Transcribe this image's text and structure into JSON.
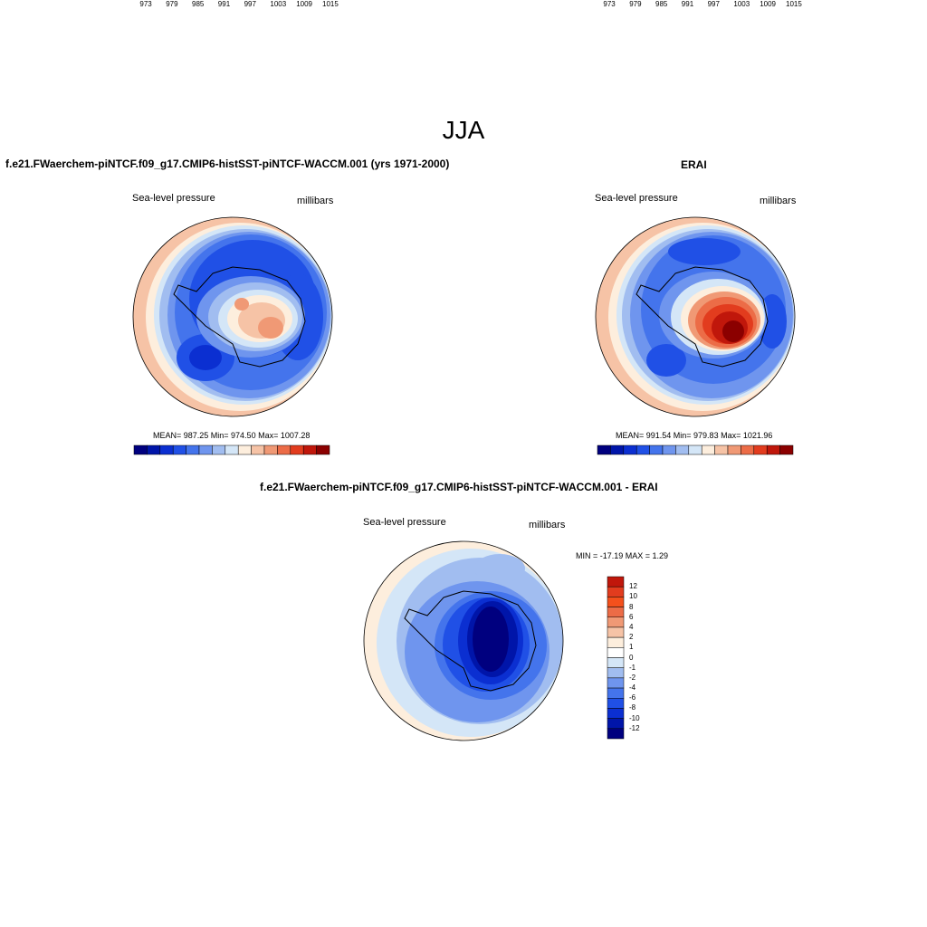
{
  "title": "JJA",
  "panels": [
    {
      "title": "f.e21.FWaerchem-piNTCF.f09_g17.CMIP6-histSST-piNTCF-WACCM.001 (yrs 1971-2000)",
      "variable": "Sea-level pressure",
      "units": "millibars",
      "stats": "MEAN= 987.25  Min= 974.50  Max= 1007.28",
      "colorbar_ticks": [
        "973",
        "979",
        "985",
        "991",
        "997",
        "1003",
        "1009",
        "1015"
      ]
    },
    {
      "title": "ERAI",
      "variable": "Sea-level pressure",
      "units": "millibars",
      "stats": "MEAN= 991.54  Min= 979.83  Max= 1021.96",
      "colorbar_ticks": [
        "973",
        "979",
        "985",
        "991",
        "997",
        "1003",
        "1009",
        "1015"
      ]
    },
    {
      "title": "f.e21.FWaerchem-piNTCF.f09_g17.CMIP6-histSST-piNTCF-WACCM.001 - ERAI",
      "variable": "Sea-level pressure",
      "units": "millibars",
      "stats": "MIN = -17.19 MAX =   1.29",
      "colorbar_ticks": [
        "12",
        "10",
        "8",
        "6",
        "4",
        "2",
        "1",
        "0",
        "-1",
        "-2",
        "-4",
        "-6",
        "-8",
        "-10",
        "-12"
      ]
    }
  ],
  "colors": {
    "abs_scale": [
      "#00007f",
      "#0015a9",
      "#0b2fd1",
      "#2050e6",
      "#4474ec",
      "#6f95ee",
      "#a1bdf0",
      "#d4e6f7",
      "#fdeedd",
      "#f6c3a6",
      "#f09975",
      "#ec6c47",
      "#e23c1e",
      "#c0170b",
      "#8b0000"
    ],
    "diff_scale": [
      "#8b0000",
      "#c0170b",
      "#e23c1e",
      "#f4501c",
      "#ec6c47",
      "#f09975",
      "#f6c3a6",
      "#fdeedd",
      "#ffffff",
      "#d4e6f7",
      "#a1bdf0",
      "#6f95ee",
      "#4474ec",
      "#2050e6",
      "#0b2fd1",
      "#0015a9",
      "#00007f"
    ]
  }
}
